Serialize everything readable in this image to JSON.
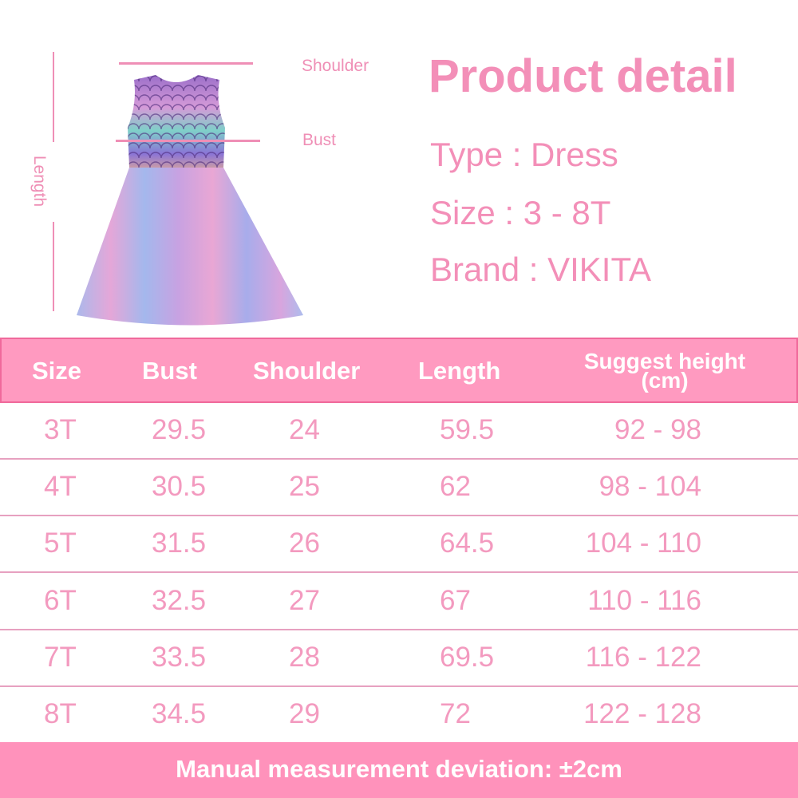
{
  "diagram": {
    "shoulder_label": "Shoulder",
    "bust_label": "Bust",
    "length_label": "Length"
  },
  "detail": {
    "title": "Product detail",
    "type": "Type : Dress",
    "size": "Size : 3 - 8T",
    "brand": "Brand : VIKITA"
  },
  "table": {
    "headers": [
      "Size",
      "Bust",
      "Shoulder",
      "Length",
      "Suggest height\n(cm)"
    ],
    "header_line1": "Suggest height",
    "header_line2": "(cm)",
    "rows": [
      [
        "3T",
        "29.5",
        "24",
        "59.5",
        "92 - 98"
      ],
      [
        "4T",
        "30.5",
        "25",
        "62",
        "98 - 104"
      ],
      [
        "5T",
        "31.5",
        "26",
        "64.5",
        "104 - 110"
      ],
      [
        "6T",
        "32.5",
        "27",
        "67",
        "110 - 116"
      ],
      [
        "7T",
        "33.5",
        "28",
        "69.5",
        "116 - 122"
      ],
      [
        "8T",
        "34.5",
        "29",
        "72",
        "122 - 128"
      ]
    ]
  },
  "footer": "Manual measurement deviation: ±2cm",
  "colors": {
    "accent": "#f38fb8",
    "header_bg": "#ff9ac0",
    "footer_bg": "#ff92bb"
  }
}
